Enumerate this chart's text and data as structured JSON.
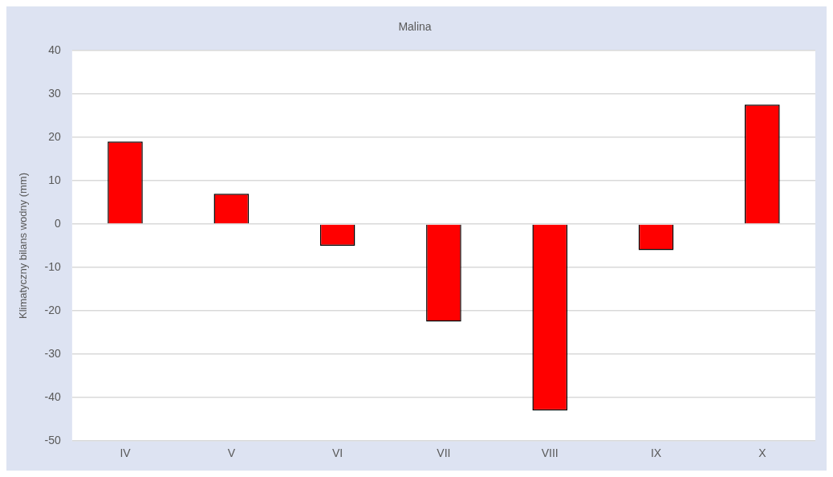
{
  "chart_data": {
    "type": "bar",
    "title": "Malina",
    "ylabel": "Klimatyczny bilans wodny (mm)",
    "categories": [
      "IV",
      "V",
      "VI",
      "VII",
      "VIII",
      "IX",
      "X"
    ],
    "values": [
      19,
      7,
      -5,
      -22.5,
      -43,
      -6,
      27.5
    ],
    "color": "#ff0000",
    "ylim": [
      -50,
      40
    ],
    "yticks": [
      -50,
      -40,
      -30,
      -20,
      -10,
      0,
      10,
      20,
      30,
      40
    ],
    "grid": "y"
  }
}
